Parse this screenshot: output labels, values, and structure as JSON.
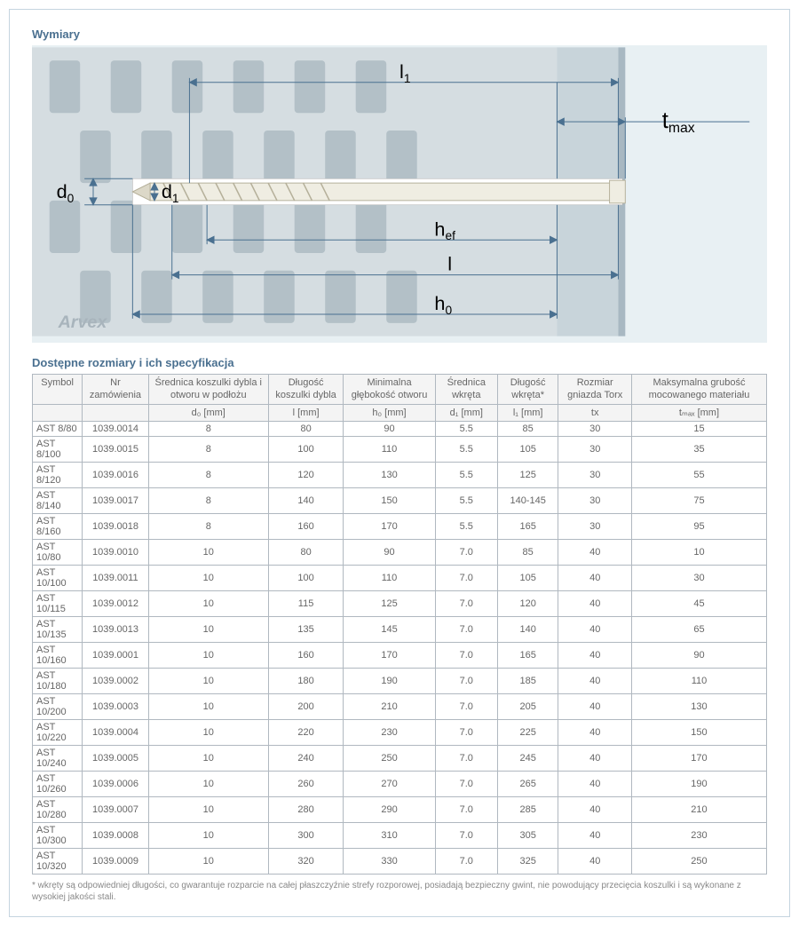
{
  "titles": {
    "dimensions": "Wymiary",
    "spec": "Dostępne rozmiary i ich specyfikacja"
  },
  "diagram": {
    "brand": "Arvex",
    "labels": {
      "d0": "d",
      "d0sub": "0",
      "d1": "d",
      "d1sub": "1",
      "l1": "l",
      "l1sub": "1",
      "hef": "h",
      "hefsub": "ef",
      "l": "l",
      "h0": "h",
      "h0sub": "0",
      "tmax": "t",
      "tmaxsub": "max"
    },
    "bg": "#e8f0f3",
    "wall": "#d0d8dc",
    "hole": "#aab6bd",
    "line": "#4a7090",
    "screw_body": "#f0ede0",
    "screw_outline": "#b0ac98"
  },
  "table": {
    "headers": [
      "Symbol",
      "Nr zamówienia",
      "Średnica koszulki dybla i otworu w podłożu",
      "Długość koszulki dybla",
      "Minimalna głębokość otworu",
      "Średnica wkręta",
      "Długość wkręta*",
      "Rozmiar gniazda Torx",
      "Maksymalna grubość mocowanego materiału"
    ],
    "units": [
      "",
      "",
      "d₀ [mm]",
      "l [mm]",
      "h₀ [mm]",
      "d₁ [mm]",
      "l₁ [mm]",
      "tx",
      "tₘₐₓ [mm]"
    ],
    "rows": [
      [
        "AST 8/80",
        "1039.0014",
        "8",
        "80",
        "90",
        "5.5",
        "85",
        "30",
        "15"
      ],
      [
        "AST 8/100",
        "1039.0015",
        "8",
        "100",
        "110",
        "5.5",
        "105",
        "30",
        "35"
      ],
      [
        "AST 8/120",
        "1039.0016",
        "8",
        "120",
        "130",
        "5.5",
        "125",
        "30",
        "55"
      ],
      [
        "AST 8/140",
        "1039.0017",
        "8",
        "140",
        "150",
        "5.5",
        "140-145",
        "30",
        "75"
      ],
      [
        "AST 8/160",
        "1039.0018",
        "8",
        "160",
        "170",
        "5.5",
        "165",
        "30",
        "95"
      ],
      [
        "AST 10/80",
        "1039.0010",
        "10",
        "80",
        "90",
        "7.0",
        "85",
        "40",
        "10"
      ],
      [
        "AST 10/100",
        "1039.0011",
        "10",
        "100",
        "110",
        "7.0",
        "105",
        "40",
        "30"
      ],
      [
        "AST 10/115",
        "1039.0012",
        "10",
        "115",
        "125",
        "7.0",
        "120",
        "40",
        "45"
      ],
      [
        "AST 10/135",
        "1039.0013",
        "10",
        "135",
        "145",
        "7.0",
        "140",
        "40",
        "65"
      ],
      [
        "AST 10/160",
        "1039.0001",
        "10",
        "160",
        "170",
        "7.0",
        "165",
        "40",
        "90"
      ],
      [
        "AST 10/180",
        "1039.0002",
        "10",
        "180",
        "190",
        "7.0",
        "185",
        "40",
        "110"
      ],
      [
        "AST 10/200",
        "1039.0003",
        "10",
        "200",
        "210",
        "7.0",
        "205",
        "40",
        "130"
      ],
      [
        "AST 10/220",
        "1039.0004",
        "10",
        "220",
        "230",
        "7.0",
        "225",
        "40",
        "150"
      ],
      [
        "AST 10/240",
        "1039.0005",
        "10",
        "240",
        "250",
        "7.0",
        "245",
        "40",
        "170"
      ],
      [
        "AST 10/260",
        "1039.0006",
        "10",
        "260",
        "270",
        "7.0",
        "265",
        "40",
        "190"
      ],
      [
        "AST 10/280",
        "1039.0007",
        "10",
        "280",
        "290",
        "7.0",
        "285",
        "40",
        "210"
      ],
      [
        "AST 10/300",
        "1039.0008",
        "10",
        "300",
        "310",
        "7.0",
        "305",
        "40",
        "230"
      ],
      [
        "AST 10/320",
        "1039.0009",
        "10",
        "320",
        "330",
        "7.0",
        "325",
        "40",
        "250"
      ]
    ]
  },
  "footnote": "* wkręty są odpowiedniej długości, co gwarantuje rozparcie na całej płaszczyźnie strefy rozporowej, posiadają bezpieczny gwint, nie powodujący przecięcia koszulki i są wykonane z wysokiej jakości stali."
}
